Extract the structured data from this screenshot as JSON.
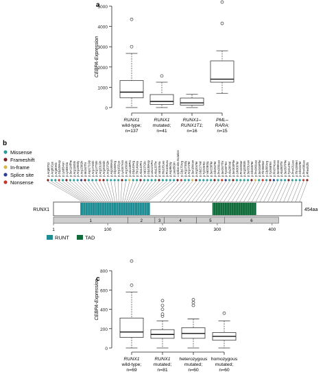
{
  "chart_data": [
    {
      "type": "boxplot",
      "panel": "a",
      "ylabel": "CEBPA-Expression",
      "ylim": [
        0,
        5000
      ],
      "yticks": [
        0,
        1000,
        2000,
        3000,
        4000,
        5000
      ],
      "groups": [
        {
          "line1": "RUNX1",
          "line2": "wild-type;",
          "line3": "n=137",
          "whisker_low": 0,
          "q1": 480,
          "median": 760,
          "q3": 1330,
          "whisker_high": 2670,
          "outliers": [
            3000,
            4350
          ]
        },
        {
          "line1": "RUNX1",
          "line2": "mutated;",
          "line3": "n=41",
          "whisker_low": 0,
          "q1": 150,
          "median": 300,
          "q3": 640,
          "whisker_high": 1250,
          "outliers": [
            1560
          ]
        },
        {
          "line1": "RUNX1–",
          "line2": "RUNX1T1;",
          "line3": "n=16",
          "whisker_low": 0,
          "q1": 120,
          "median": 230,
          "q3": 470,
          "whisker_high": 650,
          "outliers": []
        },
        {
          "line1": "PML–",
          "line2": "RARA;",
          "line3": "n=15",
          "whisker_low": 700,
          "q1": 1250,
          "median": 1400,
          "q3": 2300,
          "whisker_high": 2800,
          "outliers": [
            4150,
            5300
          ]
        }
      ]
    },
    {
      "type": "lollipop",
      "panel": "b",
      "gene": "RUNX1",
      "length_label": "454aa",
      "axis_ticks": [
        "1",
        "100",
        "200",
        "300",
        "400"
      ],
      "exons": [
        "1",
        "2",
        "3",
        "4",
        "5",
        "6"
      ],
      "legend": [
        {
          "label": "Missense",
          "color": "#2a9d9a"
        },
        {
          "label": "Frameshift",
          "color": "#7a1f1f"
        },
        {
          "label": "In-frame",
          "color": "#d4b84a"
        },
        {
          "label": "Splice site",
          "color": "#2c3e8f"
        },
        {
          "label": "Nonsense",
          "color": "#c0392b"
        }
      ],
      "domains": [
        {
          "label": "RUNT",
          "color": "#1e8c93"
        },
        {
          "label": "TAD",
          "color": "#0f6b3a"
        }
      ],
      "mutations": [
        "p.Arg80Trp",
        "p.Arg80Cys",
        "p.Arg80His",
        "p.Gly108Asp",
        "p.Lys83Asn",
        "p.Lys83Glu",
        "p.Ser114Phe",
        "p.Arg118Gln",
        "p.Arg135Gly",
        "p.Arg139Gln",
        "p.Ile150Thr",
        "p.Asp171Gly",
        "p.Arg174Gln",
        "p.Arg177Gln",
        "p.Arg201Gln",
        "p.Arg204Gln",
        "p.Arg207Gln",
        "p.Asp198Asn",
        "p.Gly168Arg",
        "p.Arg162Lys",
        "p.Lys167Asn",
        "p.Arg166Gln",
        "p.Leu148Pro",
        "p.Gly143Arg",
        "p.Thr149Ala",
        "p.Ala142Pro",
        "p.Val137Glu",
        "p.Gly138Asp",
        "p.Leu121Pro",
        "p.Ala120Thr",
        "p.Val105Ala",
        "p.His105Leu",
        "p.Pro103Leu",
        "p.Asp96Gly",
        "p.Leu85Gln",
        "c.splice.site.mutation",
        "p.Gly170Arg",
        "p.Arg173Gly",
        "p.Arg174Ter",
        "p.Ser184Asn",
        "p.Arg204Ter",
        "p.Gly217Val",
        "p.Tyr225Ter",
        "p.Val228Gly",
        "p.Ser238Ter",
        "p.Gln252Ter",
        "p.Pro266Leu",
        "p.Ser267Thr",
        "p.Tyr287Ter",
        "p.Ala296Val",
        "p.Ser303Phe",
        "p.Gln306Ter",
        "p.Pro320Ser",
        "p.Arg328Gln",
        "p.Ser331Asn",
        "p.Gln335Ter",
        "p.Pro340Leu",
        "p.Ser345Phe",
        "p.Thr358Ser",
        "p.Gly365Arg",
        "p.Tyr368Ter",
        "p.Pro374Leu",
        "p.Ser388Asn",
        "p.Ala393Thr",
        "p.Ser397Phe",
        "p.Tyr414Ter",
        "p.Pro421Leu",
        "p.Thr428Met",
        "p.Gln434Ter",
        "p.Pro438Leu",
        "p.Phe452fs"
      ]
    },
    {
      "type": "boxplot",
      "panel": "c",
      "ylabel": "CEBPA-Expression",
      "ylim": [
        0,
        1000
      ],
      "yticks": [
        0,
        200,
        400,
        600,
        800
      ],
      "groups": [
        {
          "line1": "RUNX1",
          "line2": "wild-type;",
          "line3": "n=69",
          "whisker_low": 0,
          "q1": 110,
          "median": 165,
          "q3": 310,
          "whisker_high": 580,
          "outliers": [
            650,
            900
          ]
        },
        {
          "line1": "RUNX1",
          "line2": "mutated;",
          "line3": "n=81",
          "whisker_low": 0,
          "q1": 100,
          "median": 140,
          "q3": 190,
          "whisker_high": 280,
          "outliers": [
            330,
            350,
            400,
            440,
            490
          ]
        },
        {
          "line1": "heterozygous",
          "line2": "mutated;",
          "line3": "n=60",
          "whisker_low": 0,
          "q1": 100,
          "median": 150,
          "q3": 210,
          "whisker_high": 300,
          "outliers": [
            440,
            470,
            500
          ]
        },
        {
          "line1": "homozygous",
          "line2": "mutated;",
          "line3": "n=60",
          "whisker_low": 0,
          "q1": 80,
          "median": 120,
          "q3": 160,
          "whisker_high": 280,
          "outliers": [
            360
          ]
        }
      ]
    }
  ],
  "panels": {
    "a": "a",
    "b": "b",
    "c": "c"
  }
}
